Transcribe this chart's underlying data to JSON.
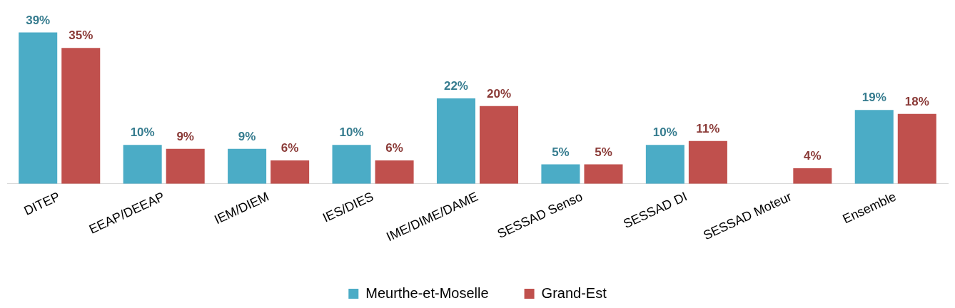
{
  "chart_data": {
    "type": "bar",
    "categories": [
      "DITEP",
      "EEAP/DEEAP",
      "IEM/DIEM",
      "IES/DIES",
      "IME/DIME/DAME",
      "SESSAD Senso",
      "SESSAD DI",
      "SESSAD Moteur",
      "Ensemble"
    ],
    "series": [
      {
        "name": "Meurthe-et-Moselle",
        "color": "#4bacc6",
        "values": [
          39,
          10,
          9,
          10,
          22,
          5,
          10,
          null,
          19
        ],
        "value_labels": [
          "39%",
          "10%",
          "9%",
          "10%",
          "22%",
          "5%",
          "10%",
          null,
          "19%"
        ]
      },
      {
        "name": "Grand-Est",
        "color": "#c0504d",
        "values": [
          35,
          9,
          6,
          6,
          20,
          5,
          11,
          4,
          18
        ],
        "value_labels": [
          "35%",
          "9%",
          "6%",
          "6%",
          "20%",
          "5%",
          "11%",
          "4%",
          "18%"
        ]
      }
    ],
    "legend": "bottom",
    "grid": false,
    "tick_labels": "x"
  }
}
